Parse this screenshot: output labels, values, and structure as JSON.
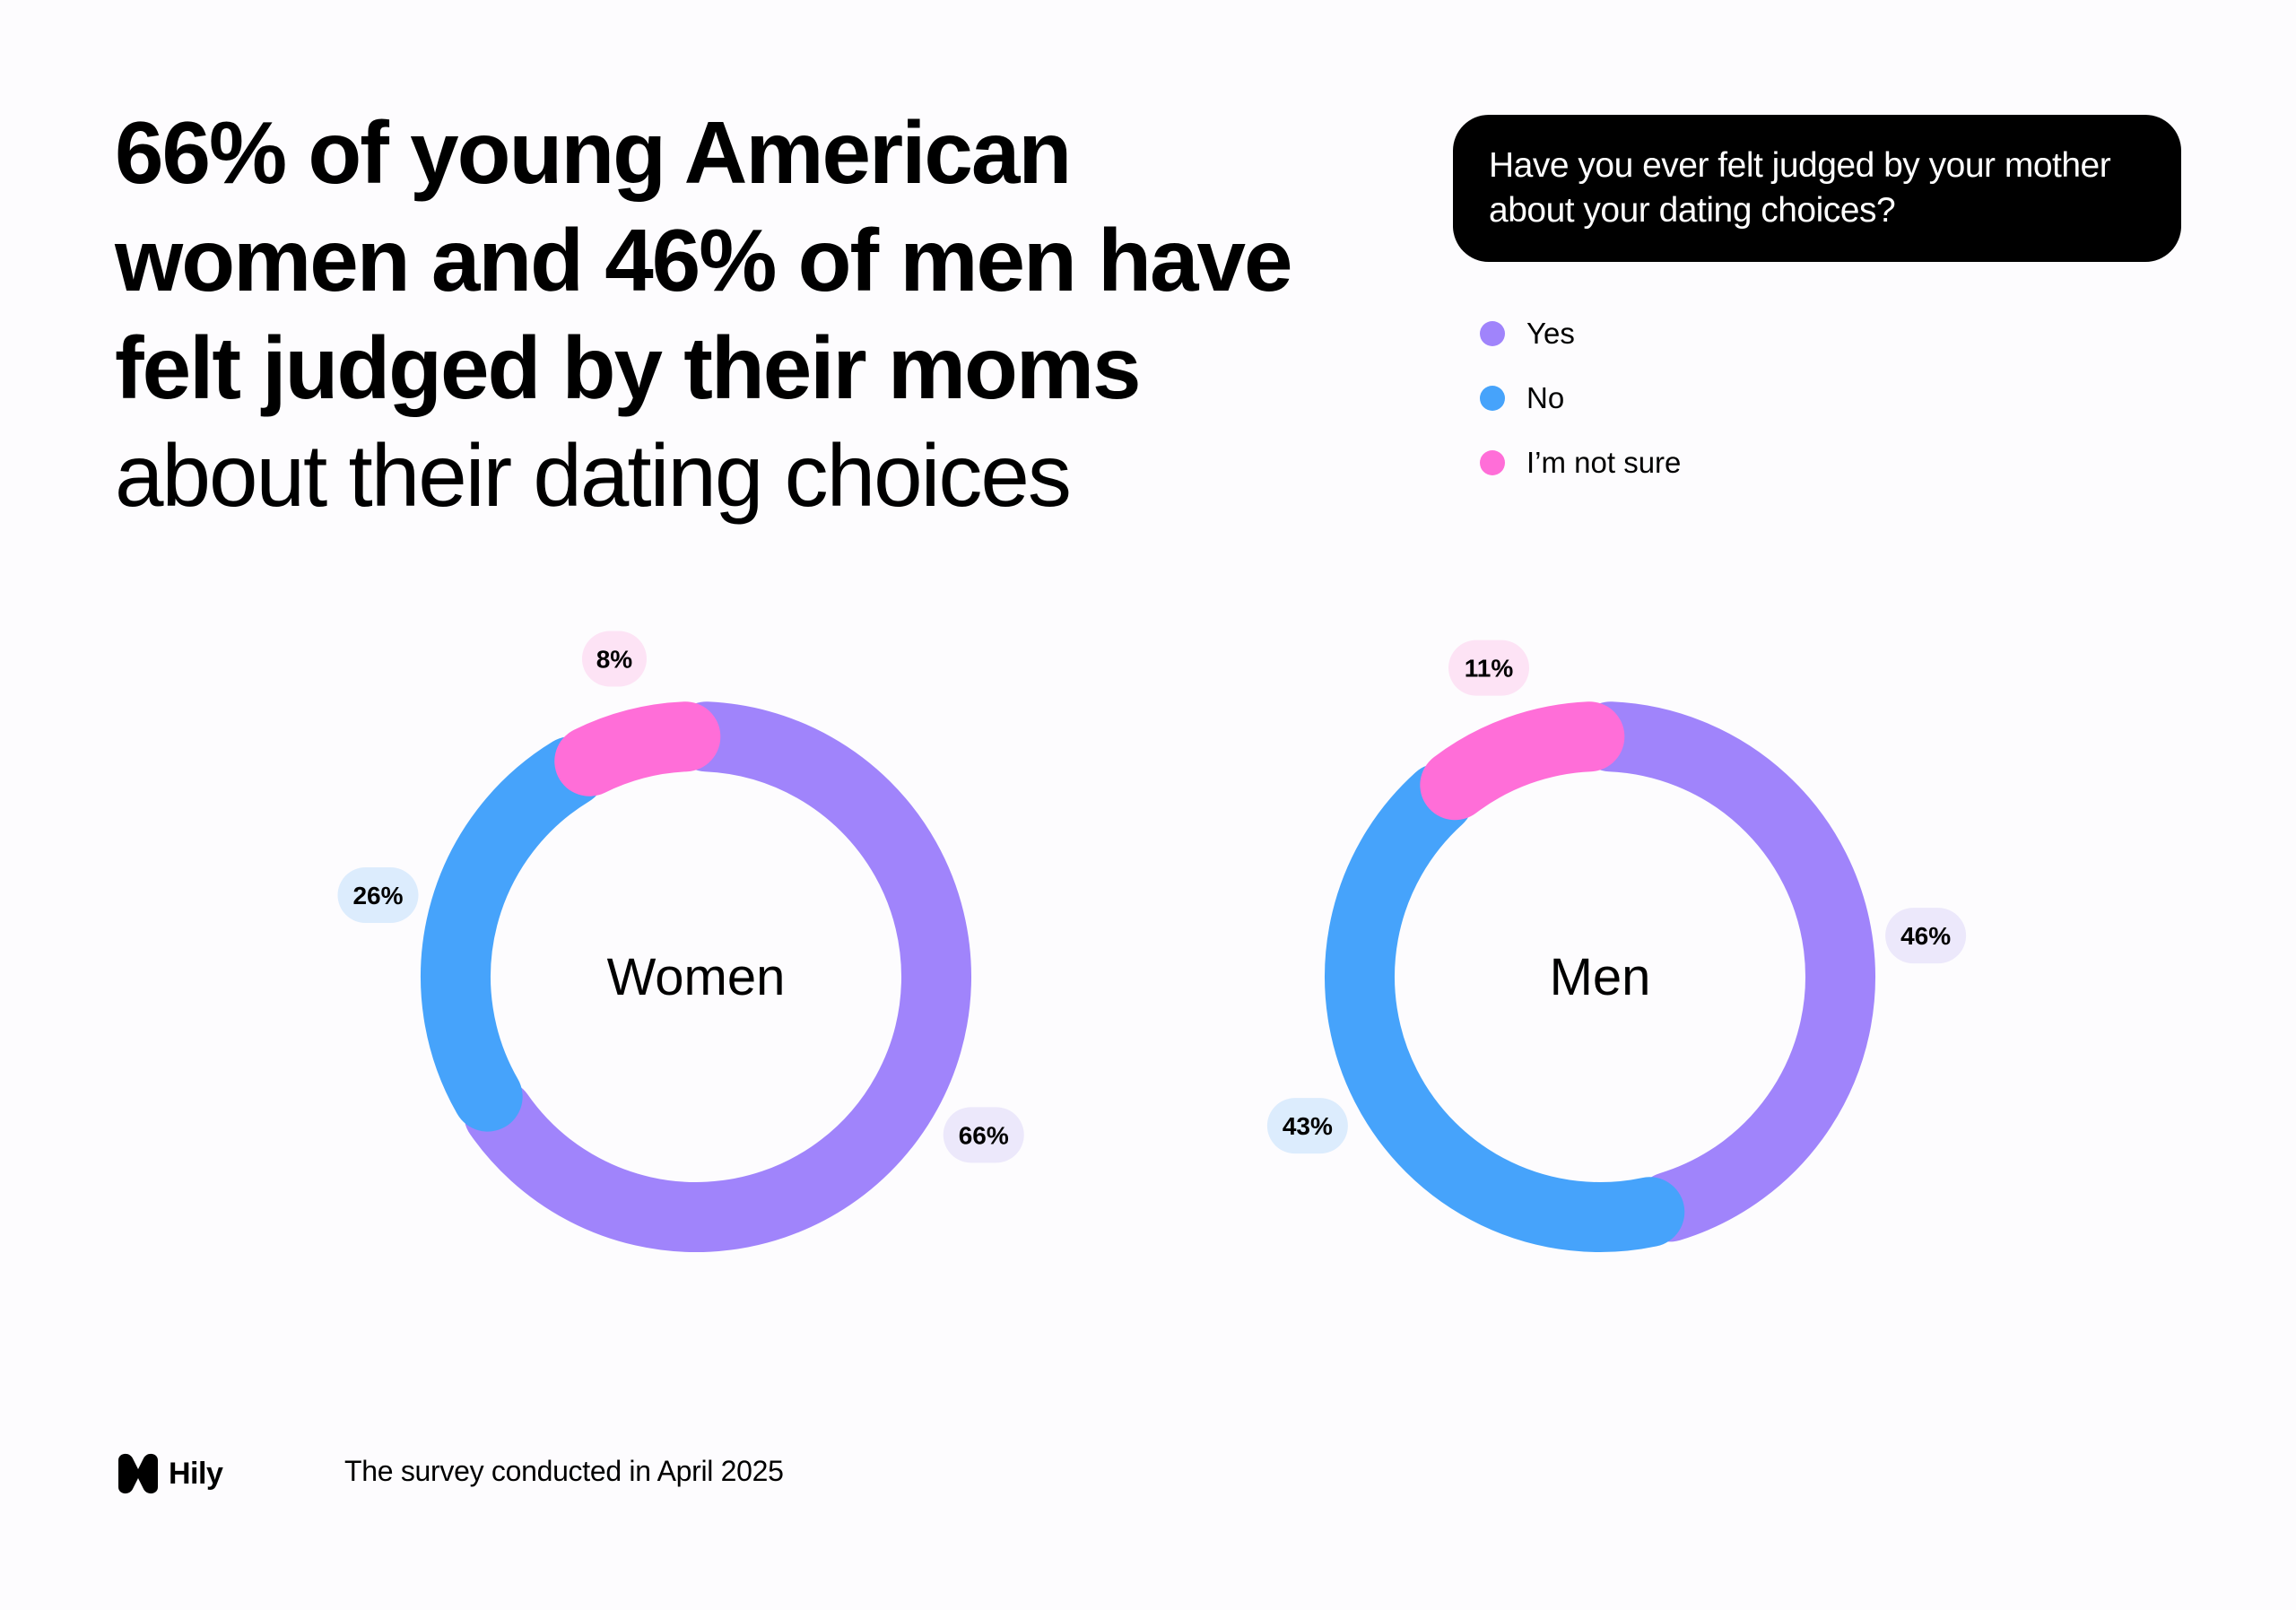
{
  "headline": {
    "bold_lines": [
      "66% of young American",
      "women and 46% of men have",
      "felt judged by their moms"
    ],
    "light_line": "about their dating choices"
  },
  "question": "Have you ever felt judged by your mother about your dating choices?",
  "colors": {
    "yes": "#a084fb",
    "no": "#46a3fb",
    "not_sure": "#ff6ed8",
    "yes_bg": "#ece8fb",
    "no_bg": "#dcecfd",
    "not_sure_bg": "#fde3f5"
  },
  "chart_data": [
    {
      "type": "pie",
      "center_label": "Women",
      "categories": [
        "Yes",
        "No",
        "I’m not sure"
      ],
      "values": [
        66,
        26,
        8
      ],
      "value_labels": [
        "66%",
        "26%",
        "8%"
      ]
    },
    {
      "type": "pie",
      "center_label": "Men",
      "categories": [
        "Yes",
        "No",
        "I’m not sure"
      ],
      "values": [
        46,
        43,
        11
      ],
      "value_labels": [
        "46%",
        "43%",
        "11%"
      ]
    }
  ],
  "legend": [
    {
      "label": "Yes",
      "color_key": "yes"
    },
    {
      "label": "No",
      "color_key": "no"
    },
    {
      "label": "I’m not sure",
      "color_key": "not_sure"
    }
  ],
  "brand": "Hily",
  "footnote": "The survey conducted in April 2025"
}
